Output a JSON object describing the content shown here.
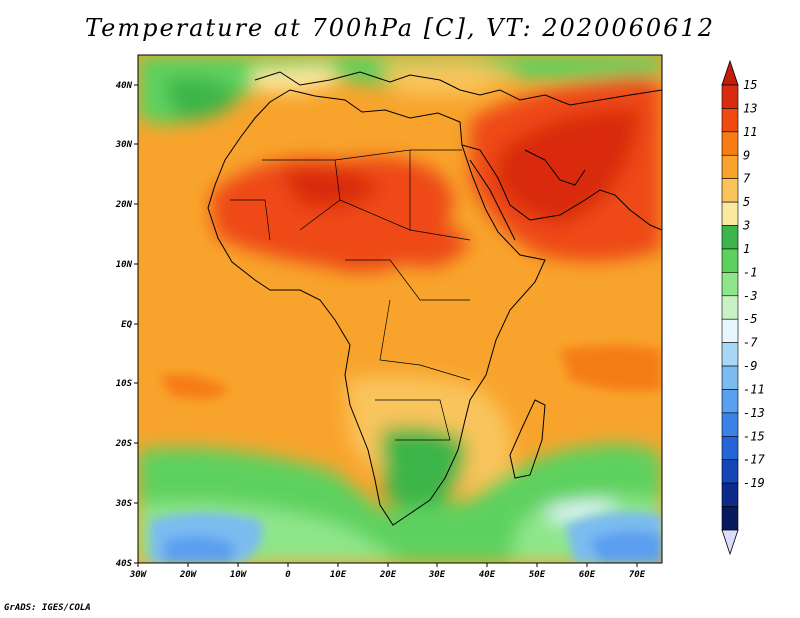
{
  "title": "Temperature at 700hPa [C], VT: 2020060612",
  "credit": "GrADS: IGES/COLA",
  "lat_labels": [
    "40N",
    "30N",
    "20N",
    "10N",
    "EQ",
    "10S",
    "20S",
    "30S",
    "40S"
  ],
  "lon_labels": [
    "30W",
    "20W",
    "10W",
    "0",
    "10E",
    "20E",
    "30E",
    "40E",
    "50E",
    "60E",
    "70E"
  ],
  "colorbar": {
    "labels": [
      "15",
      "13",
      "11",
      "9",
      "7",
      "5",
      "3",
      "1",
      "-1",
      "-3",
      "-5",
      "-7",
      "-9",
      "-11",
      "-13",
      "-15",
      "-17",
      "-19"
    ],
    "colors": [
      "#d92b10",
      "#ee4a12",
      "#f67d13",
      "#f8a42c",
      "#f9c45c",
      "#fce9a0",
      "#3db54a",
      "#5dd15e",
      "#8fe68a",
      "#c6f2c4",
      "#e6f7ff",
      "#a8d8f5",
      "#7cbbf0",
      "#5b9ff0",
      "#3c82e6",
      "#2464d6",
      "#1446b5",
      "#0c2a8a",
      "#081a5e"
    ],
    "top_triangle_color": "#c41e0a",
    "bottom_triangle_color": "#dcdcfc"
  },
  "legend": {
    "min": -19,
    "max": 15,
    "units": "C"
  }
}
